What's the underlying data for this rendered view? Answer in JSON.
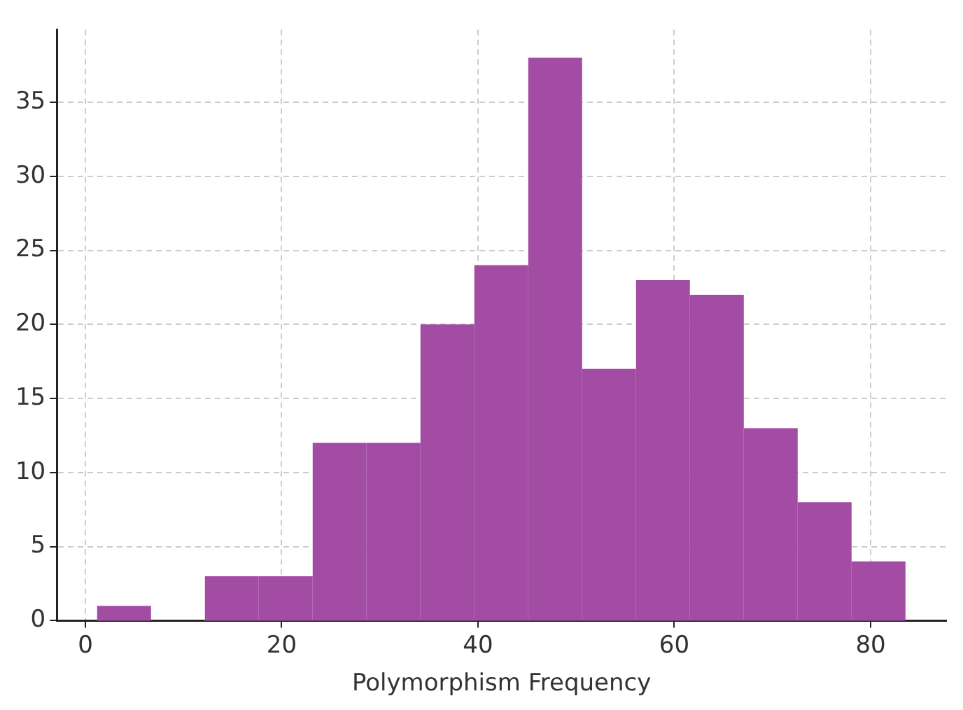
{
  "chart_data": {
    "type": "histogram",
    "xlabel": "Polymorphism Frequency",
    "bins": [
      1.2,
      6.69,
      12.18,
      17.67,
      23.16,
      28.65,
      34.14,
      39.63,
      45.12,
      50.61,
      56.1,
      61.59,
      67.08,
      72.57,
      78.06,
      83.55
    ],
    "values": [
      1,
      0,
      3,
      3,
      12,
      12,
      20,
      24,
      38,
      17,
      23,
      22,
      13,
      8,
      4
    ],
    "color": "#a34ca3",
    "xlim": [
      -2.9,
      87.7
    ],
    "xticks": [
      0,
      20,
      40,
      60,
      80
    ],
    "ylim": [
      0,
      39.9
    ],
    "yticks": [
      0,
      5,
      10,
      15,
      20,
      25,
      30,
      35
    ],
    "grid": true
  }
}
